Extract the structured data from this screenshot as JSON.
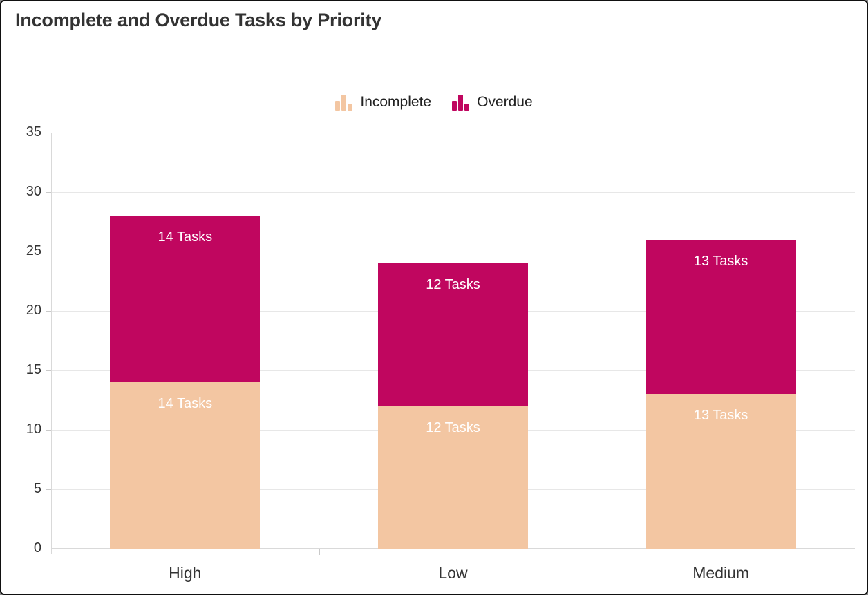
{
  "page": {
    "title": "Incomplete and Overdue Tasks by Priority"
  },
  "legend": {
    "items": [
      {
        "label": "Incomplete",
        "color": "#F3C6A2",
        "icon": "bar-chart-icon"
      },
      {
        "label": "Overdue",
        "color": "#C0065F",
        "icon": "bar-chart-icon"
      }
    ]
  },
  "theme": {
    "background": "#ffffff",
    "border": "#111111",
    "grid": "#e7e7e7",
    "axis": "#d9d9d9",
    "tick": "#c9c9c9",
    "axis_text": "#333333",
    "bar_label_text": "#ffffff",
    "incomplete_color": "#F3C6A2",
    "overdue_color": "#C0065F"
  },
  "chart_data": {
    "type": "bar",
    "stacked": true,
    "title": "Incomplete and Overdue Tasks by Priority",
    "categories": [
      "High",
      "Low",
      "Medium"
    ],
    "series": [
      {
        "name": "Incomplete",
        "color": "#F3C6A2",
        "values": [
          14,
          12,
          13
        ],
        "labels": [
          "14 Tasks",
          "12 Tasks",
          "13 Tasks"
        ]
      },
      {
        "name": "Overdue",
        "color": "#C0065F",
        "values": [
          14,
          12,
          13
        ],
        "labels": [
          "14 Tasks",
          "12 Tasks",
          "13 Tasks"
        ]
      }
    ],
    "totals": [
      28,
      24,
      26
    ],
    "xlabel": "",
    "ylabel": "",
    "ylim": [
      0,
      35
    ],
    "y_ticks": [
      0,
      5,
      10,
      15,
      20,
      25,
      30,
      35
    ],
    "grid": true,
    "legend_position": "top-center"
  }
}
